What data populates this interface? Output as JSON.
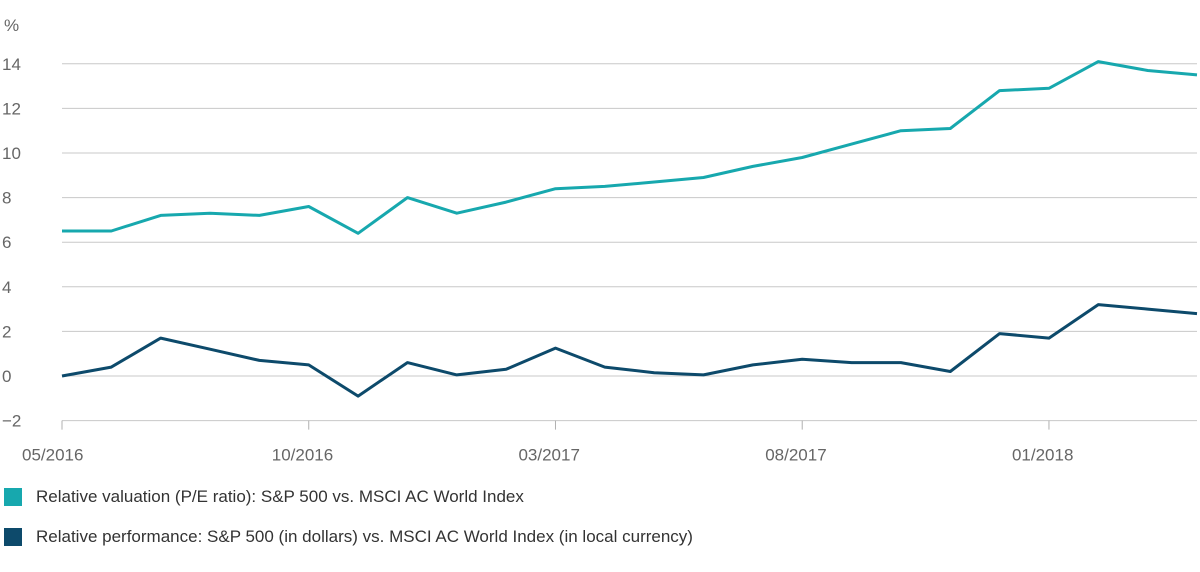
{
  "chart_data": {
    "type": "line",
    "y_unit_label": "%",
    "ylim": [
      -2,
      15
    ],
    "yticks": [
      -2,
      0,
      2,
      4,
      6,
      8,
      10,
      12,
      14
    ],
    "ytick_labels": [
      "−2",
      "0",
      "2",
      "4",
      "6",
      "8",
      "10",
      "12",
      "14"
    ],
    "x": [
      "05/2016",
      "06/2016",
      "07/2016",
      "08/2016",
      "09/2016",
      "10/2016",
      "11/2016",
      "12/2016",
      "01/2017",
      "02/2017",
      "03/2017",
      "04/2017",
      "05/2017",
      "06/2017",
      "07/2017",
      "08/2017",
      "09/2017",
      "10/2017",
      "11/2017",
      "12/2017",
      "01/2018",
      "02/2018",
      "03/2018",
      "04/2018"
    ],
    "xtick_labels": [
      "05/2016",
      "10/2016",
      "03/2017",
      "08/2017",
      "01/2018"
    ],
    "grid": true,
    "legend_position": "bottom",
    "series": [
      {
        "name": "Relative valuation (P/E ratio): S&P 500 vs. MSCI AC World Index",
        "color": "#17a8ae",
        "values": [
          6.5,
          6.5,
          7.2,
          7.3,
          7.2,
          7.6,
          6.4,
          8.0,
          7.3,
          7.8,
          8.4,
          8.5,
          8.7,
          8.9,
          9.4,
          9.8,
          10.4,
          11.0,
          11.1,
          12.8,
          12.9,
          14.1,
          13.7,
          13.5
        ]
      },
      {
        "name": "Relative performance: S&P 500 (in dollars) vs. MSCI AC World Index (in local currency)",
        "color": "#0d4a6b",
        "values": [
          0.0,
          0.4,
          1.7,
          1.2,
          0.7,
          0.5,
          -0.9,
          0.6,
          0.05,
          0.3,
          1.25,
          0.4,
          0.15,
          0.05,
          0.5,
          0.75,
          0.6,
          0.6,
          0.2,
          1.9,
          1.7,
          3.2,
          3.0,
          2.8
        ]
      }
    ]
  }
}
